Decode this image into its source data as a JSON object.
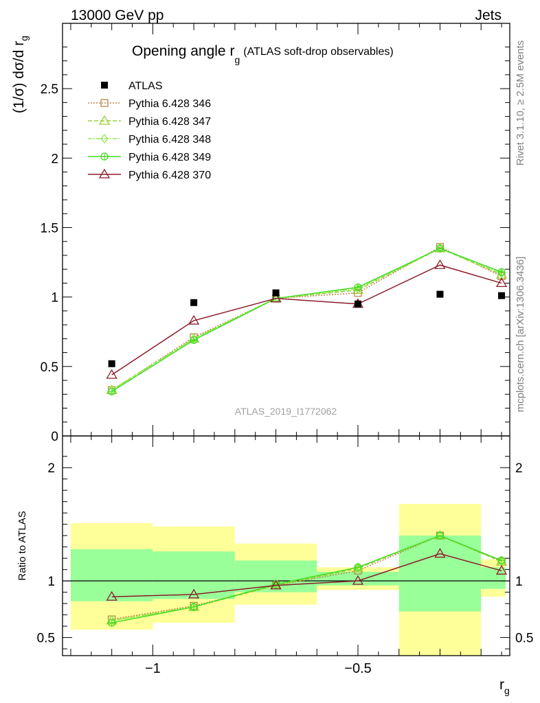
{
  "header": {
    "left": "13000 GeV pp",
    "right": "Jets"
  },
  "side_labels": {
    "rivet": "Rivet 3.1.10, ≥ 2.5M events",
    "mcplots": "mcplots.cern.ch [arXiv:1306.3436]"
  },
  "watermark": "ATLAS_2019_I1772062",
  "chart_data": [
    {
      "type": "scatter",
      "title": "Opening angle r",
      "title_sub": "g",
      "title_note": "(ATLAS soft-drop observables)",
      "ylabel": "(1/σ) dσ/d r",
      "ylabel_sub": "g",
      "xlabel": "r",
      "xlabel_sub": "g",
      "xlim": [
        -1.22,
        -0.13
      ],
      "ylim": [
        0,
        2.97
      ],
      "yticks": [
        0,
        0.5,
        1,
        1.5,
        2,
        2.5
      ],
      "yticklabels": [
        "0",
        "0.5",
        "1",
        "1.5",
        "2",
        "2.5"
      ],
      "x": [
        -1.1,
        -0.9,
        -0.7,
        -0.5,
        -0.3,
        -0.15
      ],
      "data_series": {
        "name": "ATLAS",
        "values": [
          0.52,
          0.96,
          1.03,
          0.95,
          1.02,
          1.01
        ],
        "color": "#000000"
      },
      "series": [
        {
          "name": "Pythia 6.428 346",
          "values": [
            0.33,
            0.71,
            0.99,
            1.03,
            1.36,
            1.15
          ],
          "color": "#b8864b",
          "dash": "2,2",
          "marker": "square"
        },
        {
          "name": "Pythia 6.428 347",
          "values": [
            0.33,
            0.7,
            0.99,
            1.05,
            1.35,
            1.16
          ],
          "color": "#9acd32",
          "dash": "6,3",
          "marker": "triangle"
        },
        {
          "name": "Pythia 6.428 348",
          "values": [
            0.33,
            0.7,
            0.99,
            1.06,
            1.35,
            1.17
          ],
          "color": "#90ee50",
          "dash": "6,2,2,2",
          "marker": "diamond"
        },
        {
          "name": "Pythia 6.428 349",
          "values": [
            0.32,
            0.69,
            0.99,
            1.07,
            1.35,
            1.18
          ],
          "color": "#40dd20",
          "dash": "",
          "marker": "circleplus"
        },
        {
          "name": "Pythia 6.428 370",
          "values": [
            0.44,
            0.83,
            0.99,
            0.95,
            1.23,
            1.1
          ],
          "color": "#8b1a2a",
          "dash": "",
          "marker": "triangle"
        }
      ]
    },
    {
      "type": "scatter",
      "ylabel": "Ratio to ATLAS",
      "ylim": [
        0.34,
        2.28
      ],
      "yticks": [
        0.5,
        1,
        2
      ],
      "yticklabels": [
        "0.5",
        "1",
        "2"
      ],
      "xticks": [
        -1,
        -0.5
      ],
      "xticklabels": [
        "−1",
        "−0.5"
      ],
      "x": [
        -1.1,
        -0.9,
        -0.7,
        -0.5,
        -0.3,
        -0.15
      ],
      "bins": [
        [
          -1.2,
          -1.0
        ],
        [
          -1.0,
          -0.8
        ],
        [
          -0.8,
          -0.6
        ],
        [
          -0.6,
          -0.4
        ],
        [
          -0.4,
          -0.2
        ],
        [
          -0.2,
          -0.14
        ]
      ],
      "band_outer": [
        [
          0.57,
          1.51
        ],
        [
          0.63,
          1.48
        ],
        [
          0.79,
          1.33
        ],
        [
          0.92,
          1.12
        ],
        [
          0.34,
          1.68
        ],
        [
          0.86,
          1.19
        ]
      ],
      "band_inner": [
        [
          0.82,
          1.28
        ],
        [
          0.84,
          1.26
        ],
        [
          0.9,
          1.18
        ],
        [
          0.96,
          1.08
        ],
        [
          0.73,
          1.4
        ],
        [
          0.93,
          1.12
        ]
      ],
      "series": [
        {
          "name": "Pythia 6.428 346",
          "values": [
            0.66,
            0.78,
            0.96,
            1.09,
            1.4,
            1.17
          ],
          "color": "#b8864b",
          "dash": "2,2",
          "marker": "square"
        },
        {
          "name": "Pythia 6.428 347",
          "values": [
            0.65,
            0.77,
            0.96,
            1.11,
            1.4,
            1.17
          ],
          "color": "#9acd32",
          "dash": "6,3",
          "marker": "triangle"
        },
        {
          "name": "Pythia 6.428 348",
          "values": [
            0.65,
            0.77,
            0.97,
            1.12,
            1.4,
            1.18
          ],
          "color": "#90ee50",
          "dash": "6,2,2,2",
          "marker": "diamond"
        },
        {
          "name": "Pythia 6.428 349",
          "values": [
            0.63,
            0.77,
            0.97,
            1.12,
            1.4,
            1.18
          ],
          "color": "#40dd20",
          "dash": "",
          "marker": "circleplus"
        },
        {
          "name": "Pythia 6.428 370",
          "values": [
            0.86,
            0.88,
            0.96,
            1.0,
            1.24,
            1.09
          ],
          "color": "#8b1a2a",
          "dash": "",
          "marker": "triangle"
        }
      ]
    }
  ]
}
